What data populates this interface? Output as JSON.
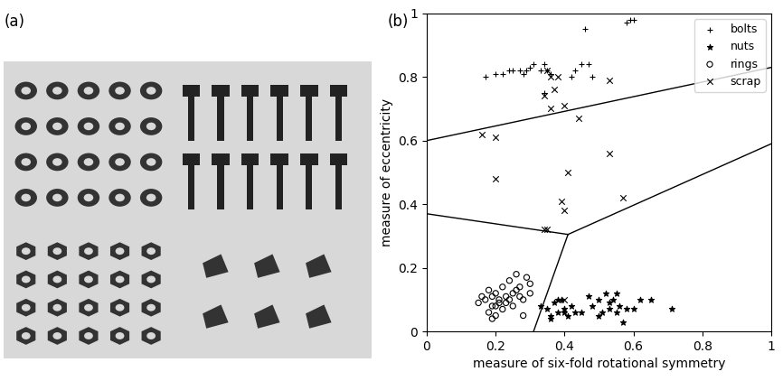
{
  "image": {
    "panel_label": "(a)"
  },
  "chart_data": {
    "type": "scatter",
    "panel_label": "(b)",
    "x_label": "measure of six-fold rotational symmetry",
    "y_label": "measure of eccentricity",
    "xlim": [
      0,
      1
    ],
    "ylim": [
      0,
      1
    ],
    "xticks": [
      0,
      0.2,
      0.4,
      0.6,
      0.8,
      1
    ],
    "yticks": [
      0,
      0.2,
      0.4,
      0.6,
      0.8,
      1
    ],
    "legend": "upper right",
    "series": [
      {
        "name": "bolts",
        "color": "#000000",
        "marker": "plus",
        "x": [
          0.17,
          0.2,
          0.22,
          0.24,
          0.25,
          0.27,
          0.28,
          0.29,
          0.3,
          0.31,
          0.33,
          0.34,
          0.35,
          0.36,
          0.34,
          0.42,
          0.43,
          0.45,
          0.46,
          0.47,
          0.48,
          0.58,
          0.59,
          0.6
        ],
        "y": [
          0.8,
          0.81,
          0.81,
          0.82,
          0.82,
          0.82,
          0.81,
          0.82,
          0.83,
          0.84,
          0.82,
          0.84,
          0.82,
          0.81,
          0.75,
          0.8,
          0.82,
          0.84,
          0.95,
          0.84,
          0.8,
          0.97,
          0.98,
          0.98
        ]
      },
      {
        "name": "nuts",
        "color": "#000000",
        "marker": "star",
        "x": [
          0.33,
          0.35,
          0.36,
          0.37,
          0.38,
          0.39,
          0.4,
          0.41,
          0.42,
          0.36,
          0.38,
          0.4,
          0.43,
          0.45,
          0.47,
          0.48,
          0.5,
          0.51,
          0.52,
          0.53,
          0.54,
          0.55,
          0.56,
          0.57,
          0.58,
          0.6,
          0.62,
          0.65,
          0.71,
          0.5,
          0.53,
          0.55
        ],
        "y": [
          0.08,
          0.07,
          0.05,
          0.09,
          0.06,
          0.1,
          0.07,
          0.05,
          0.08,
          0.04,
          0.1,
          0.06,
          0.06,
          0.06,
          0.11,
          0.08,
          0.1,
          0.06,
          0.12,
          0.07,
          0.1,
          0.06,
          0.08,
          0.03,
          0.07,
          0.07,
          0.1,
          0.1,
          0.07,
          0.05,
          0.09,
          0.12
        ]
      },
      {
        "name": "rings",
        "color": "#000000",
        "marker": "circle",
        "x": [
          0.15,
          0.16,
          0.17,
          0.18,
          0.18,
          0.19,
          0.19,
          0.2,
          0.2,
          0.21,
          0.21,
          0.22,
          0.22,
          0.23,
          0.24,
          0.24,
          0.25,
          0.25,
          0.26,
          0.27,
          0.27,
          0.28,
          0.29,
          0.3,
          0.3,
          0.19,
          0.2,
          0.23,
          0.26,
          0.28
        ],
        "y": [
          0.09,
          0.11,
          0.1,
          0.06,
          0.13,
          0.08,
          0.11,
          0.05,
          0.12,
          0.09,
          0.1,
          0.14,
          0.07,
          0.11,
          0.1,
          0.16,
          0.12,
          0.08,
          0.18,
          0.11,
          0.14,
          0.1,
          0.17,
          0.12,
          0.15,
          0.04,
          0.08,
          0.09,
          0.13,
          0.05
        ]
      },
      {
        "name": "scrap",
        "color": "#000000",
        "marker": "x",
        "x": [
          0.35,
          0.34,
          0.36,
          0.37,
          0.38,
          0.36,
          0.4,
          0.44,
          0.53,
          0.16,
          0.2,
          0.2,
          0.41,
          0.39,
          0.4,
          0.53,
          0.57,
          0.34,
          0.35,
          0.4
        ],
        "y": [
          0.82,
          0.74,
          0.8,
          0.76,
          0.8,
          0.7,
          0.71,
          0.67,
          0.79,
          0.62,
          0.61,
          0.48,
          0.5,
          0.41,
          0.38,
          0.56,
          0.42,
          0.32,
          0.32,
          0.1
        ]
      }
    ],
    "boundaries": [
      {
        "x": [
          0,
          1
        ],
        "y": [
          0.6,
          0.83
        ]
      },
      {
        "x": [
          0,
          0.41
        ],
        "y": [
          0.37,
          0.305
        ]
      },
      {
        "x": [
          0.41,
          1
        ],
        "y": [
          0.305,
          0.59
        ]
      },
      {
        "x": [
          0.41,
          0.31
        ],
        "y": [
          0.305,
          0
        ]
      }
    ]
  }
}
